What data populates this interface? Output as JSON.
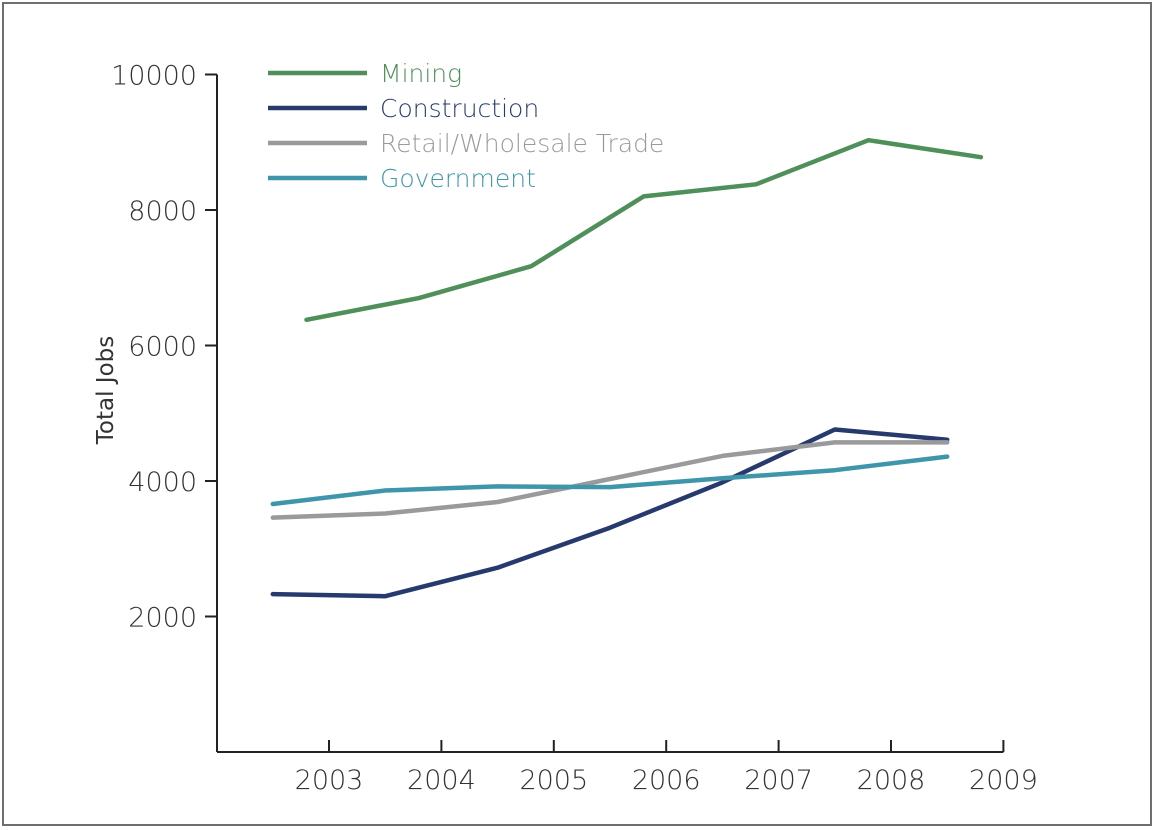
{
  "chart_data": {
    "type": "line",
    "title": "",
    "xlabel": "",
    "ylabel": "Total Jobs",
    "xlim": [
      2002,
      2009
    ],
    "ylim": [
      0,
      10000
    ],
    "xticks": [
      2003,
      2004,
      2005,
      2006,
      2007,
      2008,
      2009
    ],
    "yticks": [
      2000,
      4000,
      6000,
      8000,
      10000
    ],
    "grid": false,
    "legend_position": "top-left",
    "series": [
      {
        "name": "Mining",
        "color": "#4e8f5a",
        "x": [
          2002.8,
          2003.8,
          2004.8,
          2005.8,
          2006.8,
          2007.8,
          2008.8
        ],
        "values": [
          6380,
          6700,
          7170,
          8200,
          8380,
          9030,
          8780
        ]
      },
      {
        "name": "Construction",
        "color": "#273a6d",
        "x": [
          2002.5,
          2003.5,
          2004.5,
          2005.5,
          2006.5,
          2007.5,
          2008.5
        ],
        "values": [
          2330,
          2300,
          2720,
          3310,
          3980,
          4760,
          4610
        ]
      },
      {
        "name": "Retail/Wholesale Trade",
        "color": "#9a9a9c",
        "x": [
          2002.5,
          2003.5,
          2004.5,
          2005.5,
          2006.5,
          2007.5,
          2008.5
        ],
        "values": [
          3460,
          3520,
          3690,
          4030,
          4370,
          4570,
          4570
        ]
      },
      {
        "name": "Government",
        "color": "#3f96ab",
        "x": [
          2002.5,
          2003.5,
          2004.5,
          2005.5,
          2006.5,
          2007.5,
          2008.5
        ],
        "values": [
          3660,
          3860,
          3920,
          3910,
          4040,
          4160,
          4360
        ]
      }
    ]
  }
}
